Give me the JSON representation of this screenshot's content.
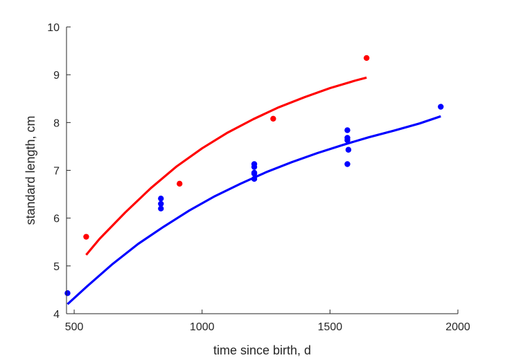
{
  "chart_data": {
    "type": "scatter",
    "title": "",
    "xlabel": "time since birth, d",
    "ylabel": "standard length, cm",
    "xlim": [
      470,
      2000
    ],
    "ylim": [
      4,
      10
    ],
    "xticks": [
      500,
      1000,
      1500,
      2000
    ],
    "yticks": [
      4,
      5,
      6,
      7,
      8,
      9,
      10
    ],
    "grid": false,
    "legend": "none",
    "series": [
      {
        "kind": "points",
        "color": "#ff0000",
        "x": [
          547,
          912,
          1278,
          1643
        ],
        "y": [
          5.61,
          6.72,
          8.08,
          9.35
        ]
      },
      {
        "kind": "points",
        "color": "#0000ff",
        "x": [
          474,
          839,
          839,
          839,
          1204,
          1204,
          1204,
          1204,
          1204,
          1568,
          1568,
          1568,
          1572,
          1568,
          1933
        ],
        "y": [
          4.43,
          6.41,
          6.3,
          6.2,
          7.13,
          7.07,
          6.93,
          6.82,
          6.95,
          7.84,
          7.68,
          7.63,
          7.43,
          7.13,
          8.33
        ]
      },
      {
        "kind": "line",
        "color": "#ff0000",
        "x": [
          547,
          600,
          700,
          800,
          900,
          1000,
          1100,
          1200,
          1300,
          1400,
          1500,
          1600,
          1643
        ],
        "y": [
          5.23,
          5.57,
          6.12,
          6.63,
          7.08,
          7.46,
          7.79,
          8.07,
          8.32,
          8.53,
          8.72,
          8.88,
          8.94
        ]
      },
      {
        "kind": "line",
        "color": "#0000ff",
        "x": [
          474,
          550,
          650,
          750,
          850,
          950,
          1050,
          1150,
          1250,
          1350,
          1450,
          1550,
          1650,
          1750,
          1850,
          1933
        ],
        "y": [
          4.2,
          4.57,
          5.04,
          5.46,
          5.82,
          6.16,
          6.46,
          6.72,
          6.96,
          7.17,
          7.36,
          7.53,
          7.69,
          7.83,
          7.98,
          8.13
        ]
      }
    ]
  }
}
